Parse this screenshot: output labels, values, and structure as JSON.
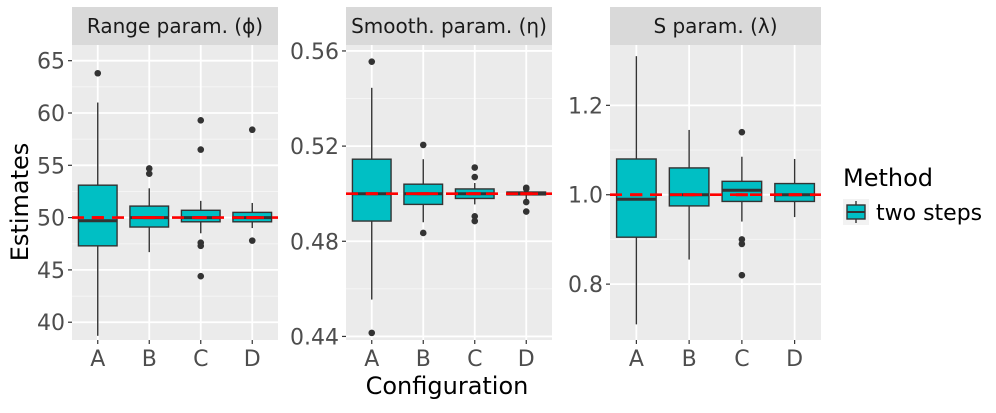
{
  "chart_data": {
    "type": "boxplot",
    "ylabel": "Estimates",
    "xlabel": "Configuration",
    "categories": [
      "A",
      "B",
      "C",
      "D"
    ],
    "legend": {
      "title": "Method",
      "entries": [
        {
          "label": "two steps",
          "color": "#00BFC4"
        }
      ],
      "position": "right"
    },
    "reference_line_color": "#FF0000",
    "box_fill": "#00BFC4",
    "panels": [
      {
        "strip": "Range param. (ϕ)",
        "ylim": [
          38.3,
          66.5
        ],
        "ticks": [
          40,
          45,
          50,
          55,
          60,
          65
        ],
        "tick_labels": [
          "40",
          "45",
          "50",
          "55",
          "60",
          "65"
        ],
        "true_value": 50,
        "boxes": [
          {
            "cat": "A",
            "q1": 47.3,
            "median": 49.7,
            "q3": 53.1,
            "lower": 38.7,
            "upper": 61.0,
            "mean": 50.0,
            "outliers": [
              63.8
            ]
          },
          {
            "cat": "B",
            "q1": 49.1,
            "median": 50.0,
            "q3": 51.1,
            "lower": 46.7,
            "upper": 52.8,
            "mean": 50.0,
            "outliers": [
              54.2,
              54.7
            ]
          },
          {
            "cat": "C",
            "q1": 49.6,
            "median": 50.0,
            "q3": 50.7,
            "lower": 48.5,
            "upper": 51.6,
            "mean": 50.0,
            "outliers": [
              59.3,
              56.5,
              47.6,
              47.3,
              44.4
            ]
          },
          {
            "cat": "D",
            "q1": 49.6,
            "median": 50.0,
            "q3": 50.5,
            "lower": 49.0,
            "upper": 51.4,
            "mean": 50.0,
            "outliers": [
              58.4,
              47.8
            ]
          }
        ]
      },
      {
        "strip": "Smooth. param. (η)",
        "ylim": [
          0.4385,
          0.5625
        ],
        "ticks": [
          0.44,
          0.48,
          0.52,
          0.56
        ],
        "tick_labels": [
          "0.44",
          "0.48",
          "0.52",
          "0.56"
        ],
        "true_value": 0.5,
        "boxes": [
          {
            "cat": "A",
            "q1": 0.4885,
            "median": 0.5,
            "q3": 0.5145,
            "lower": 0.4555,
            "upper": 0.5445,
            "mean": 0.5,
            "outliers": [
              0.5555,
              0.4415
            ]
          },
          {
            "cat": "B",
            "q1": 0.4955,
            "median": 0.5,
            "q3": 0.504,
            "lower": 0.488,
            "upper": 0.5145,
            "mean": 0.5,
            "outliers": [
              0.5205,
              0.4835
            ]
          },
          {
            "cat": "C",
            "q1": 0.498,
            "median": 0.5,
            "q3": 0.502,
            "lower": 0.4955,
            "upper": 0.5045,
            "mean": 0.5,
            "outliers": [
              0.511,
              0.507,
              0.4905,
              0.4885
            ]
          },
          {
            "cat": "D",
            "q1": 0.4995,
            "median": 0.5,
            "q3": 0.5007,
            "lower": 0.4975,
            "upper": 0.502,
            "mean": 0.5,
            "outliers": [
              0.5025,
              0.502,
              0.4965,
              0.4925
            ]
          }
        ]
      },
      {
        "strip": "S param. (λ)",
        "ylim": [
          0.675,
          1.335
        ],
        "ticks": [
          0.8,
          1.0,
          1.2
        ],
        "tick_labels": [
          "0.8",
          "1.0",
          "1.2"
        ],
        "true_value": 1.0,
        "boxes": [
          {
            "cat": "A",
            "q1": 0.905,
            "median": 0.99,
            "q3": 1.08,
            "lower": 0.71,
            "upper": 1.31,
            "mean": 1.0,
            "outliers": []
          },
          {
            "cat": "B",
            "q1": 0.975,
            "median": 1.0,
            "q3": 1.06,
            "lower": 0.855,
            "upper": 1.145,
            "mean": 1.0,
            "outliers": []
          },
          {
            "cat": "C",
            "q1": 0.985,
            "median": 1.01,
            "q3": 1.03,
            "lower": 0.94,
            "upper": 1.085,
            "mean": 1.0,
            "outliers": [
              1.14,
              0.9,
              0.89,
              0.82
            ]
          },
          {
            "cat": "D",
            "q1": 0.985,
            "median": 1.0,
            "q3": 1.025,
            "lower": 0.95,
            "upper": 1.08,
            "mean": 1.0,
            "outliers": []
          }
        ]
      }
    ]
  }
}
